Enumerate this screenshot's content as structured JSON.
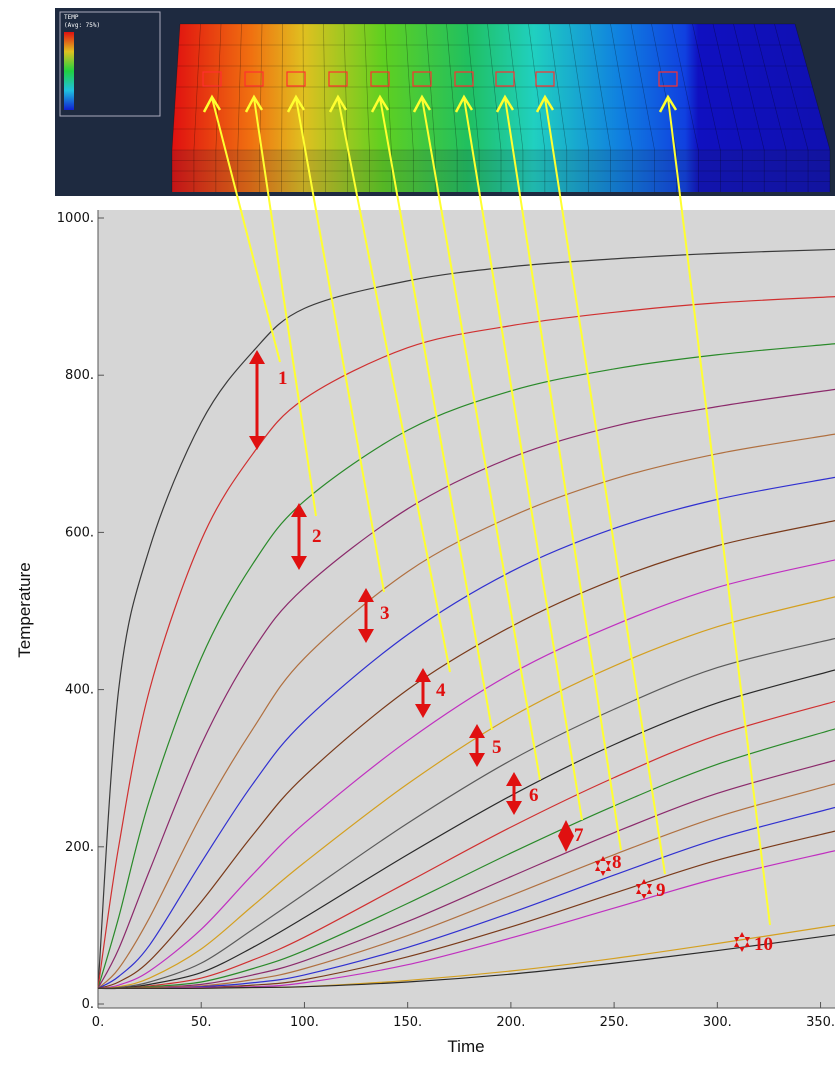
{
  "chart_data": {
    "type": "line",
    "inset": {
      "legend_title": "TEMP",
      "legend_subtitle": "(Avg: 75%)"
    },
    "x_label": "Time",
    "y_label": "Temperature",
    "x": [
      0,
      10,
      25,
      50,
      75,
      100,
      150,
      200,
      250,
      300,
      357
    ],
    "xlim": [
      0,
      357
    ],
    "ylim": [
      0,
      1000
    ],
    "xticks": [
      {
        "value": 0,
        "label": "0."
      },
      {
        "value": 50,
        "label": "50."
      },
      {
        "value": 100,
        "label": "100."
      },
      {
        "value": 150,
        "label": "150."
      },
      {
        "value": 200,
        "label": "200."
      },
      {
        "value": 250,
        "label": "250."
      },
      {
        "value": 300,
        "label": "300."
      },
      {
        "value": 350,
        "label": "350."
      }
    ],
    "yticks": [
      {
        "value": 0,
        "label": "0."
      },
      {
        "value": 200,
        "label": "200."
      },
      {
        "value": 400,
        "label": "400."
      },
      {
        "value": 600,
        "label": "600."
      },
      {
        "value": 800,
        "label": "800."
      },
      {
        "value": 1000,
        "label": "1000."
      }
    ],
    "annotations": [
      "1",
      "2",
      "3",
      "4",
      "5",
      "6",
      "7",
      "8",
      "9",
      "10"
    ],
    "series": [
      {
        "color": "#3a3a3a",
        "values": [
          20,
          400,
          580,
          740,
          830,
          885,
          920,
          938,
          948,
          955,
          960
        ]
      },
      {
        "color": "#d03030",
        "values": [
          20,
          200,
          400,
          590,
          700,
          770,
          835,
          863,
          880,
          892,
          900
        ]
      },
      {
        "color": "#2a8a2a",
        "values": [
          20,
          110,
          260,
          440,
          560,
          640,
          730,
          780,
          808,
          826,
          840
        ]
      },
      {
        "color": "#8b2a6b",
        "values": [
          20,
          70,
          170,
          330,
          450,
          530,
          630,
          695,
          735,
          760,
          782
        ]
      },
      {
        "color": "#b07040",
        "values": [
          20,
          45,
          110,
          240,
          350,
          440,
          550,
          620,
          668,
          700,
          725
        ]
      },
      {
        "color": "#3030d0",
        "values": [
          20,
          35,
          75,
          180,
          280,
          360,
          470,
          550,
          605,
          642,
          670
        ]
      },
      {
        "color": "#7a3a1a",
        "values": [
          20,
          28,
          55,
          130,
          215,
          290,
          400,
          480,
          540,
          583,
          615
        ]
      },
      {
        "color": "#c030c0",
        "values": [
          20,
          24,
          42,
          95,
          165,
          230,
          335,
          420,
          482,
          530,
          565
        ]
      },
      {
        "color": "#d4a020",
        "values": [
          20,
          22,
          33,
          70,
          125,
          180,
          280,
          365,
          430,
          480,
          518
        ]
      },
      {
        "color": "#5a5a5a",
        "values": [
          20,
          21,
          28,
          52,
          95,
          140,
          230,
          310,
          375,
          428,
          465
        ]
      },
      {
        "color": "#2a2a2a",
        "values": [
          20,
          20,
          25,
          40,
          72,
          110,
          190,
          265,
          330,
          383,
          425
        ]
      },
      {
        "color": "#d03030",
        "values": [
          20,
          20,
          23,
          33,
          56,
          85,
          155,
          225,
          288,
          342,
          385
        ]
      },
      {
        "color": "#2a8a2a",
        "values": [
          20,
          20,
          22,
          28,
          45,
          68,
          128,
          192,
          252,
          305,
          350
        ]
      },
      {
        "color": "#8b2a6b",
        "values": [
          20,
          20,
          21,
          25,
          37,
          55,
          105,
          162,
          218,
          268,
          310
        ]
      },
      {
        "color": "#b07040",
        "values": [
          20,
          20,
          21,
          23,
          31,
          45,
          87,
          138,
          190,
          238,
          280
        ]
      },
      {
        "color": "#3030d0",
        "values": [
          20,
          20,
          20,
          22,
          27,
          37,
          72,
          116,
          164,
          210,
          250
        ]
      },
      {
        "color": "#7a3a1a",
        "values": [
          20,
          20,
          20,
          21,
          24,
          31,
          60,
          98,
          141,
          183,
          220
        ]
      },
      {
        "color": "#c030c0",
        "values": [
          20,
          20,
          20,
          21,
          22,
          27,
          50,
          84,
          122,
          160,
          195
        ]
      },
      {
        "color": "#d4a020",
        "values": [
          20,
          20,
          20,
          20,
          21,
          22,
          30,
          42,
          58,
          77,
          100
        ]
      },
      {
        "color": "#2a2a2a",
        "values": [
          20,
          20,
          20,
          20,
          21,
          22,
          28,
          38,
          52,
          68,
          88
        ]
      }
    ]
  }
}
